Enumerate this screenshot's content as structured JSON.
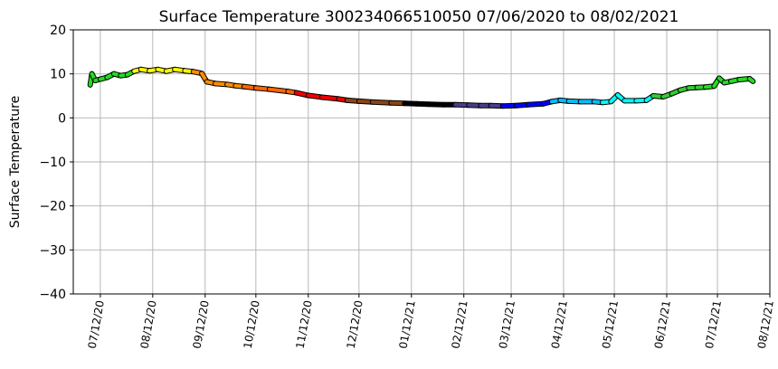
{
  "chart_data": {
    "type": "line",
    "title": "Surface Temperature 300234066510050  07/06/2020 to 08/02/2021",
    "ylabel": "Surface Temperature",
    "xlabel": "",
    "ylim": [
      -40,
      20
    ],
    "xlim": [
      "2020-06-26",
      "2021-08-12"
    ],
    "yticks": [
      -40,
      -30,
      -20,
      -10,
      0,
      10,
      20
    ],
    "xticks": [
      {
        "date": "2020-07-12",
        "label": "07/12/20"
      },
      {
        "date": "2020-08-12",
        "label": "08/12/20"
      },
      {
        "date": "2020-09-12",
        "label": "09/12/20"
      },
      {
        "date": "2020-10-12",
        "label": "10/12/20"
      },
      {
        "date": "2020-11-12",
        "label": "11/12/20"
      },
      {
        "date": "2020-12-12",
        "label": "12/12/20"
      },
      {
        "date": "2021-01-12",
        "label": "01/12/21"
      },
      {
        "date": "2021-02-12",
        "label": "02/12/21"
      },
      {
        "date": "2021-03-12",
        "label": "03/12/21"
      },
      {
        "date": "2021-04-12",
        "label": "04/12/21"
      },
      {
        "date": "2021-05-12",
        "label": "05/12/21"
      },
      {
        "date": "2021-06-12",
        "label": "06/12/21"
      },
      {
        "date": "2021-07-12",
        "label": "07/12/21"
      },
      {
        "date": "2021-08-12",
        "label": "08/12/21"
      }
    ],
    "grid": true,
    "legend": "none",
    "color_by": "month",
    "month_colors": {
      "2020-07": "#22dd22",
      "2020-08": "#ffff00",
      "2020-09": "#ff8c00",
      "2020-10": "#ff6600",
      "2020-11": "#ee0000",
      "2020-12": "#8b4513",
      "2021-01": "#000000",
      "2021-02": "#483d8b",
      "2021-03": "#0000ff",
      "2021-04": "#00bfff",
      "2021-05": "#00ffff",
      "2021-06": "#32cd32",
      "2021-07": "#22dd22",
      "2021-08": "#00ff00"
    },
    "series": [
      {
        "points": [
          [
            "2020-07-06",
            7.5
          ],
          [
            "2020-07-07",
            10.0
          ],
          [
            "2020-07-09",
            8.5
          ],
          [
            "2020-07-12",
            8.8
          ],
          [
            "2020-07-16",
            9.2
          ],
          [
            "2020-07-20",
            10.0
          ],
          [
            "2020-07-24",
            9.6
          ],
          [
            "2020-07-28",
            9.8
          ],
          [
            "2020-08-01",
            10.6
          ],
          [
            "2020-08-05",
            11.0
          ],
          [
            "2020-08-10",
            10.7
          ],
          [
            "2020-08-15",
            11.0
          ],
          [
            "2020-08-20",
            10.6
          ],
          [
            "2020-08-25",
            11.0
          ],
          [
            "2020-08-31",
            10.7
          ],
          [
            "2020-09-05",
            10.5
          ],
          [
            "2020-09-10",
            10.1
          ],
          [
            "2020-09-13",
            8.2
          ],
          [
            "2020-09-18",
            7.8
          ],
          [
            "2020-09-25",
            7.6
          ],
          [
            "2020-09-30",
            7.3
          ],
          [
            "2020-10-05",
            7.1
          ],
          [
            "2020-10-12",
            6.8
          ],
          [
            "2020-10-20",
            6.5
          ],
          [
            "2020-10-31",
            6.0
          ],
          [
            "2020-11-05",
            5.7
          ],
          [
            "2020-11-12",
            5.1
          ],
          [
            "2020-11-20",
            4.7
          ],
          [
            "2020-11-30",
            4.3
          ],
          [
            "2020-12-05",
            4.0
          ],
          [
            "2020-12-12",
            3.8
          ],
          [
            "2020-12-20",
            3.6
          ],
          [
            "2020-12-31",
            3.4
          ],
          [
            "2021-01-08",
            3.3
          ],
          [
            "2021-01-15",
            3.2
          ],
          [
            "2021-01-22",
            3.1
          ],
          [
            "2021-01-31",
            3.0
          ],
          [
            "2021-02-07",
            3.0
          ],
          [
            "2021-02-15",
            2.9
          ],
          [
            "2021-02-22",
            2.8
          ],
          [
            "2021-02-28",
            2.8
          ],
          [
            "2021-03-07",
            2.7
          ],
          [
            "2021-03-15",
            2.8
          ],
          [
            "2021-03-22",
            3.0
          ],
          [
            "2021-03-31",
            3.2
          ],
          [
            "2021-04-05",
            3.7
          ],
          [
            "2021-04-10",
            4.0
          ],
          [
            "2021-04-15",
            3.8
          ],
          [
            "2021-04-22",
            3.7
          ],
          [
            "2021-04-30",
            3.7
          ],
          [
            "2021-05-05",
            3.5
          ],
          [
            "2021-05-10",
            3.7
          ],
          [
            "2021-05-14",
            5.2
          ],
          [
            "2021-05-18",
            3.9
          ],
          [
            "2021-05-25",
            3.9
          ],
          [
            "2021-05-31",
            4.0
          ],
          [
            "2021-06-04",
            5.0
          ],
          [
            "2021-06-10",
            4.8
          ],
          [
            "2021-06-15",
            5.5
          ],
          [
            "2021-06-20",
            6.3
          ],
          [
            "2021-06-25",
            6.8
          ],
          [
            "2021-06-30",
            6.9
          ],
          [
            "2021-07-05",
            7.0
          ],
          [
            "2021-07-10",
            7.2
          ],
          [
            "2021-07-13",
            9.0
          ],
          [
            "2021-07-16",
            8.0
          ],
          [
            "2021-07-20",
            8.3
          ],
          [
            "2021-07-25",
            8.7
          ],
          [
            "2021-07-31",
            8.9
          ],
          [
            "2021-08-02",
            8.3
          ]
        ]
      }
    ]
  }
}
